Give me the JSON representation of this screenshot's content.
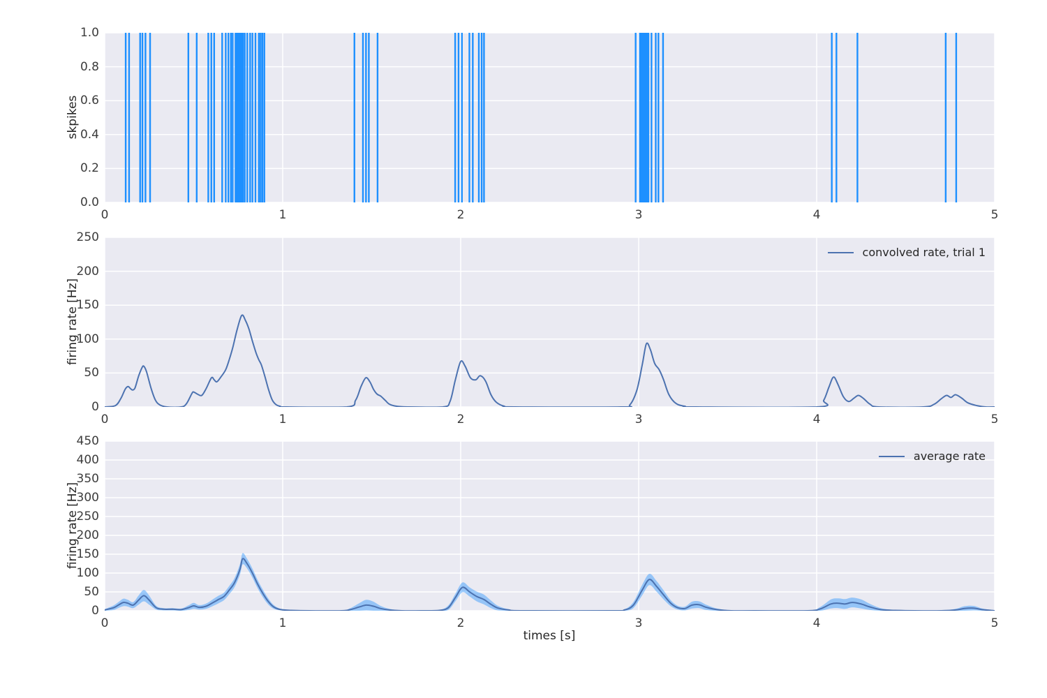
{
  "colors": {
    "figure_bg": "#ffffff",
    "axes_bg": "#eaeaf2",
    "grid": "#ffffff",
    "spike": "#1e90ff",
    "line": "#4c72b0",
    "band_fill": "rgba(30,144,255,0.42)",
    "label_text": "#262626",
    "tick_text": "#3c3c3c"
  },
  "chart_data": [
    {
      "type": "eventplot",
      "ylabel": "skpikes",
      "xlim": [
        0,
        5
      ],
      "ylim": [
        0,
        1
      ],
      "xticks": [
        0,
        1,
        2,
        3,
        4,
        5
      ],
      "xtick_labels": [
        "0",
        "1",
        "2",
        "3",
        "4",
        "5"
      ],
      "yticks": [
        0,
        0.2,
        0.4,
        0.6,
        0.8,
        1.0
      ],
      "ytick_labels": [
        "0.0",
        "0.2",
        "0.4",
        "0.6",
        "0.8",
        "1.0"
      ],
      "grid": true,
      "spike_times": [
        0.118,
        0.137,
        0.199,
        0.212,
        0.229,
        0.255,
        0.47,
        0.517,
        0.582,
        0.599,
        0.615,
        0.66,
        0.68,
        0.695,
        0.709,
        0.719,
        0.735,
        0.741,
        0.747,
        0.753,
        0.759,
        0.765,
        0.771,
        0.777,
        0.787,
        0.801,
        0.817,
        0.83,
        0.847,
        0.866,
        0.876,
        0.886,
        0.897,
        1.403,
        1.451,
        1.468,
        1.484,
        1.533,
        1.969,
        1.988,
        2.007,
        2.049,
        2.068,
        2.102,
        2.118,
        2.131,
        2.983,
        3.007,
        3.015,
        3.023,
        3.031,
        3.039,
        3.047,
        3.055,
        3.072,
        3.096,
        3.111,
        3.137,
        4.085,
        4.111,
        4.229,
        4.725,
        4.784
      ]
    },
    {
      "type": "line",
      "ylabel": "firing rate [Hz]",
      "legend": "convolved rate, trial 1",
      "legend_position": "upper right",
      "xlim": [
        0,
        5
      ],
      "ylim": [
        0,
        250
      ],
      "xticks": [
        0,
        1,
        2,
        3,
        4,
        5
      ],
      "xtick_labels": [
        "0",
        "1",
        "2",
        "3",
        "4",
        "5"
      ],
      "yticks": [
        0,
        50,
        100,
        150,
        200,
        250
      ],
      "ytick_labels": [
        "0",
        "50",
        "100",
        "150",
        "200",
        "250"
      ],
      "grid": true,
      "points": [
        [
          0,
          0
        ],
        [
          0.06,
          2
        ],
        [
          0.09,
          12
        ],
        [
          0.115,
          26
        ],
        [
          0.131,
          30
        ],
        [
          0.145,
          27
        ],
        [
          0.157,
          25
        ],
        [
          0.17,
          28
        ],
        [
          0.19,
          45
        ],
        [
          0.21,
          58
        ],
        [
          0.22,
          60
        ],
        [
          0.235,
          52
        ],
        [
          0.26,
          28
        ],
        [
          0.285,
          10
        ],
        [
          0.31,
          3
        ],
        [
          0.35,
          0
        ],
        [
          0.43,
          0
        ],
        [
          0.46,
          5
        ],
        [
          0.49,
          20
        ],
        [
          0.5,
          22
        ],
        [
          0.52,
          19
        ],
        [
          0.545,
          17
        ],
        [
          0.57,
          27
        ],
        [
          0.6,
          43
        ],
        [
          0.615,
          40
        ],
        [
          0.63,
          37
        ],
        [
          0.655,
          45
        ],
        [
          0.68,
          55
        ],
        [
          0.7,
          70
        ],
        [
          0.72,
          88
        ],
        [
          0.745,
          115
        ],
        [
          0.77,
          135
        ],
        [
          0.79,
          128
        ],
        [
          0.81,
          115
        ],
        [
          0.83,
          97
        ],
        [
          0.85,
          80
        ],
        [
          0.865,
          70
        ],
        [
          0.88,
          62
        ],
        [
          0.9,
          45
        ],
        [
          0.92,
          26
        ],
        [
          0.94,
          11
        ],
        [
          0.96,
          4
        ],
        [
          0.985,
          1
        ],
        [
          1.02,
          0
        ],
        [
          1.36,
          0
        ],
        [
          1.41,
          10
        ],
        [
          1.44,
          30
        ],
        [
          1.467,
          43
        ],
        [
          1.49,
          37
        ],
        [
          1.51,
          26
        ],
        [
          1.53,
          19
        ],
        [
          1.55,
          16
        ],
        [
          1.575,
          10
        ],
        [
          1.6,
          4
        ],
        [
          1.64,
          1
        ],
        [
          1.7,
          0
        ],
        [
          1.9,
          0
        ],
        [
          1.94,
          8
        ],
        [
          1.97,
          40
        ],
        [
          2.0,
          67
        ],
        [
          2.025,
          60
        ],
        [
          2.055,
          43
        ],
        [
          2.085,
          40
        ],
        [
          2.11,
          46
        ],
        [
          2.14,
          38
        ],
        [
          2.17,
          18
        ],
        [
          2.2,
          7
        ],
        [
          2.245,
          1
        ],
        [
          2.3,
          0
        ],
        [
          2.9,
          0
        ],
        [
          2.95,
          3
        ],
        [
          2.99,
          25
        ],
        [
          3.02,
          62
        ],
        [
          3.043,
          93
        ],
        [
          3.065,
          85
        ],
        [
          3.09,
          64
        ],
        [
          3.115,
          55
        ],
        [
          3.14,
          40
        ],
        [
          3.17,
          18
        ],
        [
          3.21,
          5
        ],
        [
          3.26,
          1
        ],
        [
          3.32,
          0
        ],
        [
          4.0,
          0
        ],
        [
          4.04,
          10
        ],
        [
          4.07,
          30
        ],
        [
          4.095,
          44
        ],
        [
          4.12,
          33
        ],
        [
          4.15,
          15
        ],
        [
          4.18,
          8
        ],
        [
          4.21,
          13
        ],
        [
          4.235,
          17
        ],
        [
          4.265,
          12
        ],
        [
          4.3,
          4
        ],
        [
          4.35,
          0
        ],
        [
          4.6,
          0
        ],
        [
          4.66,
          4
        ],
        [
          4.7,
          12
        ],
        [
          4.73,
          17
        ],
        [
          4.755,
          14
        ],
        [
          4.78,
          18
        ],
        [
          4.815,
          13
        ],
        [
          4.85,
          6
        ],
        [
          4.9,
          2
        ],
        [
          4.95,
          0
        ],
        [
          5,
          0
        ]
      ]
    },
    {
      "type": "line_band",
      "ylabel": "firing rate [Hz]",
      "xlabel": "times [s]",
      "legend": "average rate",
      "legend_position": "upper right",
      "xlim": [
        0,
        5
      ],
      "ylim": [
        0,
        450
      ],
      "xticks": [
        0,
        1,
        2,
        3,
        4,
        5
      ],
      "xtick_labels": [
        "0",
        "1",
        "2",
        "3",
        "4",
        "5"
      ],
      "yticks": [
        0,
        50,
        100,
        150,
        200,
        250,
        300,
        350,
        400,
        450
      ],
      "ytick_labels": [
        "0",
        "50",
        "100",
        "150",
        "200",
        "250",
        "300",
        "350",
        "400",
        "450"
      ],
      "grid": true,
      "points_mean_sd": [
        [
          0,
          2,
          2
        ],
        [
          0.05,
          8,
          6
        ],
        [
          0.08,
          16,
          8
        ],
        [
          0.105,
          22,
          10
        ],
        [
          0.13,
          20,
          9
        ],
        [
          0.16,
          15,
          8
        ],
        [
          0.19,
          28,
          12
        ],
        [
          0.22,
          40,
          15
        ],
        [
          0.25,
          28,
          12
        ],
        [
          0.29,
          8,
          5
        ],
        [
          0.33,
          4,
          3
        ],
        [
          0.38,
          4,
          3
        ],
        [
          0.43,
          3,
          3
        ],
        [
          0.47,
          8,
          6
        ],
        [
          0.5,
          13,
          8
        ],
        [
          0.53,
          9,
          6
        ],
        [
          0.57,
          12,
          7
        ],
        [
          0.61,
          22,
          9
        ],
        [
          0.64,
          30,
          10
        ],
        [
          0.67,
          38,
          10
        ],
        [
          0.7,
          55,
          11
        ],
        [
          0.73,
          75,
          12
        ],
        [
          0.76,
          110,
          14
        ],
        [
          0.775,
          138,
          15
        ],
        [
          0.8,
          125,
          13
        ],
        [
          0.83,
          100,
          12
        ],
        [
          0.86,
          70,
          11
        ],
        [
          0.89,
          45,
          10
        ],
        [
          0.92,
          24,
          8
        ],
        [
          0.95,
          10,
          5
        ],
        [
          0.99,
          3,
          2
        ],
        [
          1.05,
          1,
          1
        ],
        [
          1.15,
          0,
          0
        ],
        [
          1.33,
          0,
          1
        ],
        [
          1.38,
          3,
          4
        ],
        [
          1.43,
          10,
          10
        ],
        [
          1.47,
          15,
          14
        ],
        [
          1.51,
          12,
          12
        ],
        [
          1.55,
          6,
          7
        ],
        [
          1.6,
          2,
          3
        ],
        [
          1.67,
          0,
          1
        ],
        [
          1.78,
          0,
          0
        ],
        [
          1.88,
          1,
          1
        ],
        [
          1.93,
          8,
          6
        ],
        [
          1.97,
          35,
          10
        ],
        [
          2.01,
          62,
          13
        ],
        [
          2.05,
          50,
          12
        ],
        [
          2.09,
          38,
          13
        ],
        [
          2.13,
          30,
          13
        ],
        [
          2.17,
          17,
          10
        ],
        [
          2.21,
          7,
          6
        ],
        [
          2.27,
          2,
          2
        ],
        [
          2.35,
          0,
          0
        ],
        [
          2.85,
          0,
          0
        ],
        [
          2.92,
          2,
          2
        ],
        [
          2.97,
          15,
          8
        ],
        [
          3.02,
          55,
          14
        ],
        [
          3.06,
          83,
          15
        ],
        [
          3.1,
          65,
          14
        ],
        [
          3.14,
          42,
          12
        ],
        [
          3.18,
          20,
          8
        ],
        [
          3.22,
          8,
          5
        ],
        [
          3.26,
          6,
          5
        ],
        [
          3.3,
          15,
          9
        ],
        [
          3.34,
          16,
          9
        ],
        [
          3.38,
          9,
          7
        ],
        [
          3.44,
          3,
          3
        ],
        [
          3.52,
          0,
          1
        ],
        [
          3.65,
          0,
          0
        ],
        [
          3.95,
          0,
          1
        ],
        [
          4.02,
          5,
          5
        ],
        [
          4.08,
          18,
          12
        ],
        [
          4.12,
          20,
          13
        ],
        [
          4.16,
          18,
          13
        ],
        [
          4.2,
          22,
          13
        ],
        [
          4.25,
          18,
          12
        ],
        [
          4.3,
          10,
          8
        ],
        [
          4.36,
          3,
          4
        ],
        [
          4.44,
          1,
          1
        ],
        [
          4.55,
          0,
          1
        ],
        [
          4.7,
          0,
          1
        ],
        [
          4.78,
          2,
          3
        ],
        [
          4.83,
          6,
          6
        ],
        [
          4.88,
          7,
          6
        ],
        [
          4.93,
          3,
          3
        ],
        [
          4.98,
          1,
          1
        ],
        [
          5,
          0,
          0
        ]
      ]
    }
  ]
}
